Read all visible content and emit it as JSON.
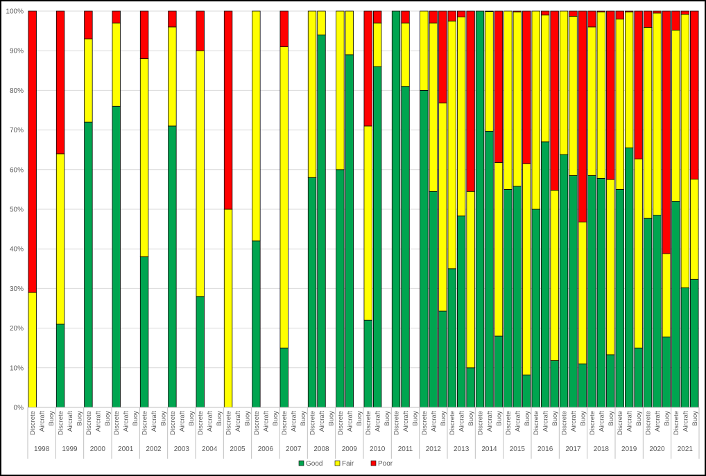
{
  "chart_data": {
    "type": "bar",
    "stacked": true,
    "y_format": "percent",
    "ylim": [
      0,
      100
    ],
    "y_ticks": [
      "0%",
      "10%",
      "20%",
      "30%",
      "40%",
      "50%",
      "60%",
      "70%",
      "80%",
      "90%",
      "100%"
    ],
    "grid": true,
    "legend_position": "bottom",
    "sub_categories": [
      "Discrete",
      "Aircraft",
      "Buoy"
    ],
    "categories": [
      "1998",
      "1999",
      "2000",
      "2001",
      "2002",
      "2003",
      "2004",
      "2005",
      "2006",
      "2007",
      "2008",
      "2009",
      "2010",
      "2011",
      "2012",
      "2013",
      "2014",
      "2015",
      "2016",
      "2017",
      "2018",
      "2019",
      "2020",
      "2021"
    ],
    "series": [
      {
        "name": "Good",
        "color": "#00A550",
        "values": [
          [
            0,
            null,
            null
          ],
          [
            21,
            null,
            null
          ],
          [
            72,
            null,
            null
          ],
          [
            76,
            null,
            null
          ],
          [
            38,
            null,
            null
          ],
          [
            71,
            null,
            null
          ],
          [
            28,
            null,
            null
          ],
          [
            0,
            null,
            null
          ],
          [
            42,
            null,
            null
          ],
          [
            15,
            null,
            null
          ],
          [
            58,
            94,
            null
          ],
          [
            60,
            89,
            null
          ],
          [
            22,
            86,
            null
          ],
          [
            100,
            81,
            null
          ],
          [
            80,
            54.5,
            24.3
          ],
          [
            35,
            48.3,
            10
          ],
          [
            100,
            69.7,
            18
          ],
          [
            55,
            55.8,
            8.2
          ],
          [
            50,
            67,
            11.8
          ],
          [
            63.8,
            58.5,
            11
          ],
          [
            58.5,
            57.8,
            13.3
          ],
          [
            55,
            65.5,
            15
          ],
          [
            47.7,
            48.5,
            17.8
          ],
          [
            52,
            30.2,
            32.3
          ]
        ]
      },
      {
        "name": "Fair",
        "color": "#FFFF00",
        "values": [
          [
            29,
            null,
            null
          ],
          [
            43,
            null,
            null
          ],
          [
            21,
            null,
            null
          ],
          [
            21,
            null,
            null
          ],
          [
            50,
            null,
            null
          ],
          [
            25,
            null,
            null
          ],
          [
            62,
            null,
            null
          ],
          [
            50,
            null,
            null
          ],
          [
            58,
            null,
            null
          ],
          [
            76,
            null,
            null
          ],
          [
            42,
            6,
            null
          ],
          [
            40,
            11,
            null
          ],
          [
            49,
            11,
            null
          ],
          [
            0,
            16,
            null
          ],
          [
            20,
            42.5,
            52.5
          ],
          [
            62.5,
            50.2,
            44.5
          ],
          [
            0,
            30.2,
            43.8
          ],
          [
            45,
            44,
            53.3
          ],
          [
            50,
            32,
            43
          ],
          [
            36.2,
            40.2,
            35.8
          ],
          [
            37.5,
            42,
            44.2
          ],
          [
            43,
            34.3,
            47.7
          ],
          [
            48.2,
            51,
            21
          ],
          [
            43.2,
            69,
            25.3
          ]
        ]
      },
      {
        "name": "Poor",
        "color": "#FF0000",
        "values": [
          [
            71,
            null,
            null
          ],
          [
            36,
            null,
            null
          ],
          [
            7,
            null,
            null
          ],
          [
            3,
            null,
            null
          ],
          [
            12,
            null,
            null
          ],
          [
            4,
            null,
            null
          ],
          [
            10,
            null,
            null
          ],
          [
            50,
            null,
            null
          ],
          [
            0,
            null,
            null
          ],
          [
            9,
            null,
            null
          ],
          [
            0,
            0,
            null
          ],
          [
            0,
            0,
            null
          ],
          [
            29,
            3,
            null
          ],
          [
            0,
            3,
            null
          ],
          [
            0,
            3,
            23.2
          ],
          [
            2.5,
            1.5,
            45.5
          ],
          [
            0,
            0.1,
            38.2
          ],
          [
            0,
            0.2,
            38.5
          ],
          [
            0,
            1,
            45.2
          ],
          [
            0,
            1.3,
            53.2
          ],
          [
            4,
            0.2,
            42.5
          ],
          [
            2,
            0.2,
            37.3
          ],
          [
            4.1,
            0.5,
            61.2
          ],
          [
            4.8,
            0.8,
            42.4
          ]
        ]
      }
    ]
  }
}
